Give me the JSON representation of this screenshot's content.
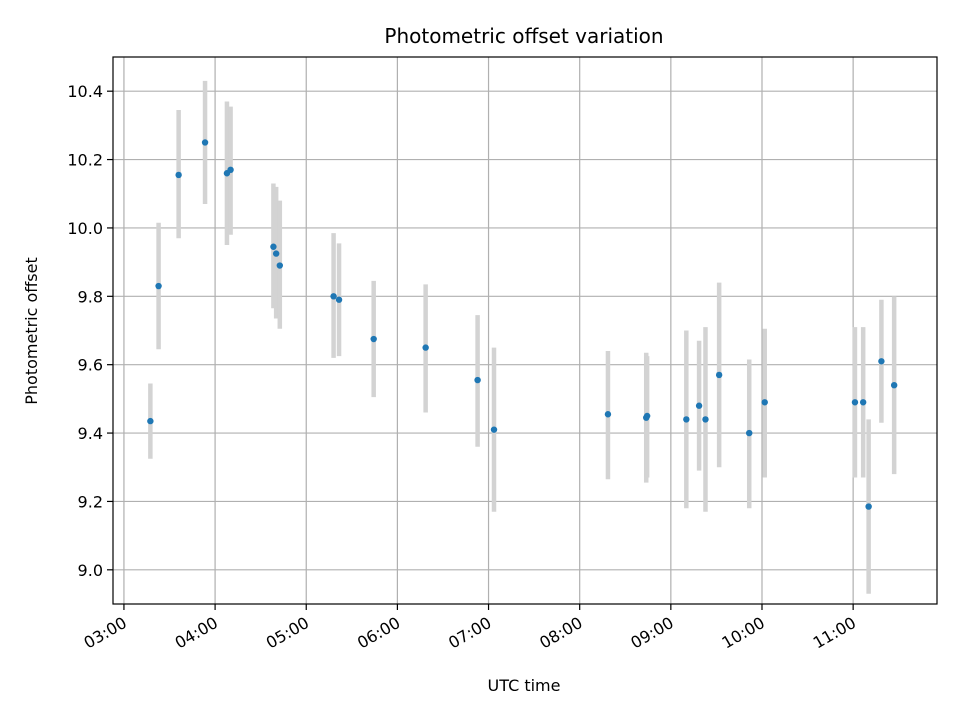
{
  "chart_data": {
    "type": "scatter",
    "title": "Photometric offset variation",
    "xlabel": "UTC time",
    "ylabel": "Photometric offset",
    "x_unit": "hours UTC",
    "xlim": [
      2.88,
      11.92
    ],
    "ylim": [
      8.9,
      10.5
    ],
    "x_ticks": [
      {
        "value": 3,
        "label": "03:00"
      },
      {
        "value": 4,
        "label": "04:00"
      },
      {
        "value": 5,
        "label": "05:00"
      },
      {
        "value": 6,
        "label": "06:00"
      },
      {
        "value": 7,
        "label": "07:00"
      },
      {
        "value": 8,
        "label": "08:00"
      },
      {
        "value": 9,
        "label": "09:00"
      },
      {
        "value": 10,
        "label": "10:00"
      },
      {
        "value": 11,
        "label": "11:00"
      }
    ],
    "y_ticks": [
      {
        "value": 9.0,
        "label": "9.0"
      },
      {
        "value": 9.2,
        "label": "9.2"
      },
      {
        "value": 9.4,
        "label": "9.4"
      },
      {
        "value": 9.6,
        "label": "9.6"
      },
      {
        "value": 9.8,
        "label": "9.8"
      },
      {
        "value": 10.0,
        "label": "10.0"
      },
      {
        "value": 10.2,
        "label": "10.2"
      },
      {
        "value": 10.4,
        "label": "10.4"
      }
    ],
    "grid": true,
    "colors": {
      "point": "#1f77b4",
      "errorbar": "#d3d3d3",
      "grid": "#b0b0b0"
    },
    "series": [
      {
        "points": [
          {
            "x": 3.29,
            "y": 9.435,
            "lo": 9.325,
            "hi": 9.545
          },
          {
            "x": 3.38,
            "y": 9.83,
            "lo": 9.645,
            "hi": 10.015
          },
          {
            "x": 3.6,
            "y": 10.155,
            "lo": 9.97,
            "hi": 10.345
          },
          {
            "x": 3.89,
            "y": 10.25,
            "lo": 10.07,
            "hi": 10.43
          },
          {
            "x": 4.13,
            "y": 10.16,
            "lo": 9.95,
            "hi": 10.37
          },
          {
            "x": 4.17,
            "y": 10.17,
            "lo": 9.98,
            "hi": 10.355
          },
          {
            "x": 4.64,
            "y": 9.945,
            "lo": 9.765,
            "hi": 10.13
          },
          {
            "x": 4.67,
            "y": 9.925,
            "lo": 9.735,
            "hi": 10.12
          },
          {
            "x": 4.71,
            "y": 9.89,
            "lo": 9.705,
            "hi": 10.08
          },
          {
            "x": 5.3,
            "y": 9.8,
            "lo": 9.62,
            "hi": 9.985
          },
          {
            "x": 5.36,
            "y": 9.79,
            "lo": 9.625,
            "hi": 9.955
          },
          {
            "x": 5.74,
            "y": 9.675,
            "lo": 9.505,
            "hi": 9.845
          },
          {
            "x": 6.31,
            "y": 9.65,
            "lo": 9.46,
            "hi": 9.835
          },
          {
            "x": 6.88,
            "y": 9.555,
            "lo": 9.36,
            "hi": 9.745
          },
          {
            "x": 7.06,
            "y": 9.41,
            "lo": 9.17,
            "hi": 9.65
          },
          {
            "x": 8.31,
            "y": 9.455,
            "lo": 9.265,
            "hi": 9.64
          },
          {
            "x": 8.73,
            "y": 9.445,
            "lo": 9.255,
            "hi": 9.635
          },
          {
            "x": 8.74,
            "y": 9.45,
            "lo": 9.27,
            "hi": 9.625
          },
          {
            "x": 9.17,
            "y": 9.44,
            "lo": 9.18,
            "hi": 9.7
          },
          {
            "x": 9.31,
            "y": 9.48,
            "lo": 9.29,
            "hi": 9.67
          },
          {
            "x": 9.38,
            "y": 9.44,
            "lo": 9.17,
            "hi": 9.71
          },
          {
            "x": 9.53,
            "y": 9.57,
            "lo": 9.3,
            "hi": 9.84
          },
          {
            "x": 9.86,
            "y": 9.4,
            "lo": 9.18,
            "hi": 9.615
          },
          {
            "x": 10.03,
            "y": 9.49,
            "lo": 9.27,
            "hi": 9.705
          },
          {
            "x": 11.02,
            "y": 9.49,
            "lo": 9.27,
            "hi": 9.71
          },
          {
            "x": 11.11,
            "y": 9.49,
            "lo": 9.27,
            "hi": 9.71
          },
          {
            "x": 11.17,
            "y": 9.185,
            "lo": 8.93,
            "hi": 9.44
          },
          {
            "x": 11.31,
            "y": 9.61,
            "lo": 9.43,
            "hi": 9.79
          },
          {
            "x": 11.45,
            "y": 9.54,
            "lo": 9.28,
            "hi": 9.8
          }
        ]
      }
    ]
  }
}
